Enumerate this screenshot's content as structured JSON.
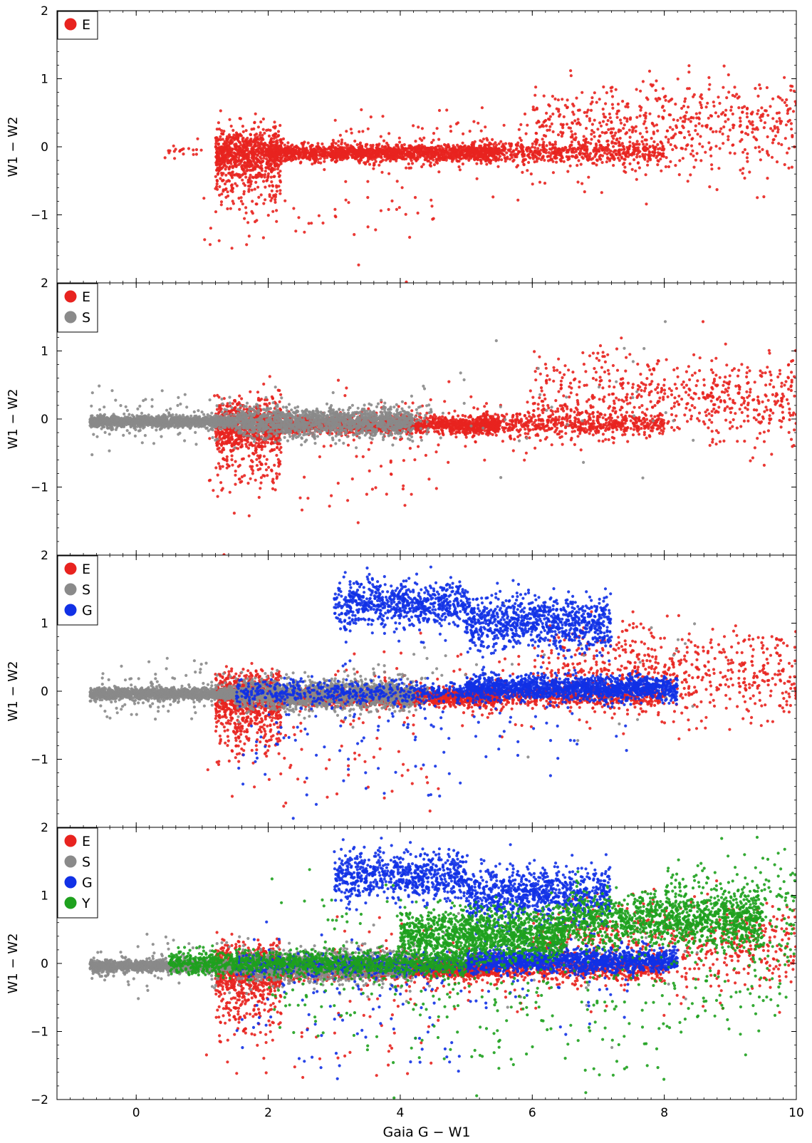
{
  "figure": {
    "xlabel": "Gaia G − W1"
  },
  "colors": {
    "E": "#e8231f",
    "S": "#8a8a8a",
    "G": "#1131e6",
    "Y": "#1ea11e"
  },
  "chart_data": [
    {
      "type": "scatter",
      "panel": 1,
      "xlabel": "",
      "ylabel": "W1 − W2",
      "xlim": [
        -1.2,
        10
      ],
      "ylim": [
        -2,
        2
      ],
      "xticks": [
        0,
        2,
        4,
        6,
        8,
        10
      ],
      "yticks": [
        -1,
        0,
        1,
        2
      ],
      "legend": {
        "position": "top-left",
        "entries": [
          "E"
        ]
      },
      "series": [
        {
          "name": "E",
          "color": "#e8231f",
          "regions": [
            {
              "n": 700,
              "x": [
                1.2,
                2.2
              ],
              "y": [
                -0.08,
                0.18
              ]
            },
            {
              "n": 1600,
              "x": [
                2.0,
                5.5
              ],
              "y": [
                -0.09,
                0.06
              ]
            },
            {
              "n": 550,
              "x": [
                5.0,
                8.0
              ],
              "y": [
                -0.08,
                0.08
              ]
            },
            {
              "n": 500,
              "x": [
                6.0,
                10.0
              ],
              "y": [
                0.35,
                0.3
              ]
            },
            {
              "n": 250,
              "x": [
                3.0,
                10.0
              ],
              "y": [
                -0.05,
                0.3
              ]
            },
            {
              "n": 200,
              "x": [
                1.2,
                2.2
              ],
              "y": [
                -0.45,
                0.3
              ]
            },
            {
              "n": 60,
              "x": [
                1.0,
                4.6
              ],
              "y": [
                -0.9,
                0.45
              ]
            },
            {
              "n": 20,
              "x": [
                0.4,
                1.0
              ],
              "y": [
                -0.05,
                0.05
              ]
            }
          ]
        }
      ]
    },
    {
      "type": "scatter",
      "panel": 2,
      "xlabel": "",
      "ylabel": "W1 − W2",
      "xlim": [
        -1.2,
        10
      ],
      "ylim": [
        -2,
        2
      ],
      "xticks": [
        0,
        2,
        4,
        6,
        8,
        10
      ],
      "yticks": [
        -1,
        0,
        1,
        2
      ],
      "legend": {
        "position": "top-left",
        "entries": [
          "E",
          "S"
        ]
      },
      "series": [
        {
          "name": "E",
          "color": "#e8231f",
          "regions": [
            {
              "n": 700,
              "x": [
                1.2,
                2.2
              ],
              "y": [
                -0.08,
                0.18
              ]
            },
            {
              "n": 1600,
              "x": [
                2.0,
                5.5
              ],
              "y": [
                -0.09,
                0.06
              ]
            },
            {
              "n": 550,
              "x": [
                5.0,
                8.0
              ],
              "y": [
                -0.08,
                0.08
              ]
            },
            {
              "n": 500,
              "x": [
                6.0,
                10.0
              ],
              "y": [
                0.35,
                0.3
              ]
            },
            {
              "n": 250,
              "x": [
                3.0,
                10.0
              ],
              "y": [
                -0.05,
                0.3
              ]
            },
            {
              "n": 200,
              "x": [
                1.2,
                2.2
              ],
              "y": [
                -0.45,
                0.3
              ]
            },
            {
              "n": 60,
              "x": [
                1.0,
                4.6
              ],
              "y": [
                -0.9,
                0.45
              ]
            }
          ]
        },
        {
          "name": "S",
          "color": "#8a8a8a",
          "regions": [
            {
              "n": 1500,
              "x": [
                -0.7,
                1.5
              ],
              "y": [
                -0.04,
                0.04
              ]
            },
            {
              "n": 1400,
              "x": [
                1.5,
                4.2
              ],
              "y": [
                -0.05,
                0.1
              ]
            },
            {
              "n": 300,
              "x": [
                -0.7,
                4.5
              ],
              "y": [
                0.0,
                0.18
              ]
            },
            {
              "n": 40,
              "x": [
                4.0,
                8.5
              ],
              "y": [
                0.2,
                0.5
              ]
            }
          ]
        }
      ]
    },
    {
      "type": "scatter",
      "panel": 3,
      "xlabel": "",
      "ylabel": "W1 − W2",
      "xlim": [
        -1.2,
        10
      ],
      "ylim": [
        -2,
        2
      ],
      "xticks": [
        0,
        2,
        4,
        6,
        8,
        10
      ],
      "yticks": [
        -1,
        0,
        1,
        2
      ],
      "legend": {
        "position": "top-left",
        "entries": [
          "E",
          "S",
          "G"
        ]
      },
      "series": [
        {
          "name": "E",
          "color": "#e8231f",
          "regions": [
            {
              "n": 700,
              "x": [
                1.2,
                2.2
              ],
              "y": [
                -0.08,
                0.18
              ]
            },
            {
              "n": 1600,
              "x": [
                2.0,
                5.5
              ],
              "y": [
                -0.09,
                0.06
              ]
            },
            {
              "n": 550,
              "x": [
                5.0,
                8.0
              ],
              "y": [
                -0.08,
                0.08
              ]
            },
            {
              "n": 500,
              "x": [
                6.0,
                10.0
              ],
              "y": [
                0.35,
                0.3
              ]
            },
            {
              "n": 250,
              "x": [
                3.0,
                10.0
              ],
              "y": [
                -0.05,
                0.3
              ]
            },
            {
              "n": 200,
              "x": [
                1.2,
                2.2
              ],
              "y": [
                -0.45,
                0.3
              ]
            },
            {
              "n": 60,
              "x": [
                1.0,
                4.6
              ],
              "y": [
                -0.9,
                0.45
              ]
            }
          ]
        },
        {
          "name": "S",
          "color": "#8a8a8a",
          "regions": [
            {
              "n": 1500,
              "x": [
                -0.7,
                1.5
              ],
              "y": [
                -0.04,
                0.04
              ]
            },
            {
              "n": 1400,
              "x": [
                1.5,
                4.2
              ],
              "y": [
                -0.05,
                0.1
              ]
            },
            {
              "n": 300,
              "x": [
                -0.7,
                4.5
              ],
              "y": [
                0.0,
                0.18
              ]
            },
            {
              "n": 40,
              "x": [
                4.0,
                8.5
              ],
              "y": [
                0.2,
                0.5
              ]
            }
          ]
        },
        {
          "name": "G",
          "color": "#1131e6",
          "regions": [
            {
              "n": 700,
              "x": [
                3.0,
                5.0
              ],
              "y": [
                1.28,
                0.17
              ]
            },
            {
              "n": 900,
              "x": [
                5.0,
                7.2
              ],
              "y": [
                1.0,
                0.2
              ]
            },
            {
              "n": 1500,
              "x": [
                5.0,
                8.2
              ],
              "y": [
                0.04,
                0.09
              ]
            },
            {
              "n": 500,
              "x": [
                1.5,
                5.0
              ],
              "y": [
                -0.02,
                0.08
              ]
            },
            {
              "n": 120,
              "x": [
                1.7,
                7.5
              ],
              "y": [
                -0.35,
                0.35
              ]
            },
            {
              "n": 30,
              "x": [
                1.5,
                5.0
              ],
              "y": [
                -1.2,
                0.3
              ]
            }
          ]
        }
      ]
    },
    {
      "type": "scatter",
      "panel": 4,
      "xlabel": "Gaia G − W1",
      "ylabel": "W1 − W2",
      "xlim": [
        -1.2,
        10
      ],
      "ylim": [
        -2,
        2
      ],
      "xticks": [
        0,
        2,
        4,
        6,
        8,
        10
      ],
      "yticks": [
        -2,
        -1,
        0,
        1,
        2
      ],
      "legend": {
        "position": "top-left",
        "entries": [
          "E",
          "S",
          "G",
          "Y"
        ]
      },
      "series": [
        {
          "name": "E",
          "color": "#e8231f",
          "regions": [
            {
              "n": 700,
              "x": [
                1.2,
                2.2
              ],
              "y": [
                -0.08,
                0.18
              ]
            },
            {
              "n": 1600,
              "x": [
                2.0,
                5.5
              ],
              "y": [
                -0.09,
                0.06
              ]
            },
            {
              "n": 550,
              "x": [
                5.0,
                8.0
              ],
              "y": [
                -0.08,
                0.08
              ]
            },
            {
              "n": 500,
              "x": [
                6.0,
                10.0
              ],
              "y": [
                0.35,
                0.3
              ]
            },
            {
              "n": 250,
              "x": [
                3.0,
                10.0
              ],
              "y": [
                -0.05,
                0.3
              ]
            },
            {
              "n": 200,
              "x": [
                1.2,
                2.2
              ],
              "y": [
                -0.45,
                0.3
              ]
            },
            {
              "n": 60,
              "x": [
                1.0,
                4.6
              ],
              "y": [
                -0.9,
                0.45
              ]
            }
          ]
        },
        {
          "name": "S",
          "color": "#8a8a8a",
          "regions": [
            {
              "n": 1500,
              "x": [
                -0.7,
                1.5
              ],
              "y": [
                -0.04,
                0.04
              ]
            },
            {
              "n": 1400,
              "x": [
                1.5,
                4.2
              ],
              "y": [
                -0.05,
                0.1
              ]
            },
            {
              "n": 300,
              "x": [
                -0.7,
                4.5
              ],
              "y": [
                0.0,
                0.18
              ]
            },
            {
              "n": 40,
              "x": [
                4.0,
                8.5
              ],
              "y": [
                0.2,
                0.5
              ]
            }
          ]
        },
        {
          "name": "G",
          "color": "#1131e6",
          "regions": [
            {
              "n": 700,
              "x": [
                3.0,
                5.0
              ],
              "y": [
                1.28,
                0.17
              ]
            },
            {
              "n": 900,
              "x": [
                5.0,
                7.2
              ],
              "y": [
                1.0,
                0.2
              ]
            },
            {
              "n": 1500,
              "x": [
                5.0,
                8.2
              ],
              "y": [
                0.04,
                0.09
              ]
            },
            {
              "n": 500,
              "x": [
                1.5,
                5.0
              ],
              "y": [
                -0.02,
                0.08
              ]
            },
            {
              "n": 120,
              "x": [
                1.7,
                7.5
              ],
              "y": [
                -0.35,
                0.35
              ]
            },
            {
              "n": 30,
              "x": [
                1.5,
                5.0
              ],
              "y": [
                -1.2,
                0.3
              ]
            }
          ]
        },
        {
          "name": "Y",
          "color": "#1ea11e",
          "regions": [
            {
              "n": 1300,
              "x": [
                0.5,
                5.0
              ],
              "y": [
                0.0,
                0.09
              ]
            },
            {
              "n": 1400,
              "x": [
                4.0,
                6.5
              ],
              "y": [
                0.42,
                0.18
              ]
            },
            {
              "n": 1200,
              "x": [
                6.5,
                9.5
              ],
              "y": [
                0.65,
                0.2
              ]
            },
            {
              "n": 250,
              "x": [
                8.0,
                10.0
              ],
              "y": [
                0.8,
                0.4
              ]
            },
            {
              "n": 260,
              "x": [
                2.0,
                10.0
              ],
              "y": [
                -0.4,
                0.4
              ]
            },
            {
              "n": 60,
              "x": [
                3.0,
                8.0
              ],
              "y": [
                -1.3,
                0.4
              ]
            },
            {
              "n": 20,
              "x": [
                2.0,
                4.0
              ],
              "y": [
                0.8,
                0.3
              ]
            }
          ]
        }
      ]
    }
  ]
}
